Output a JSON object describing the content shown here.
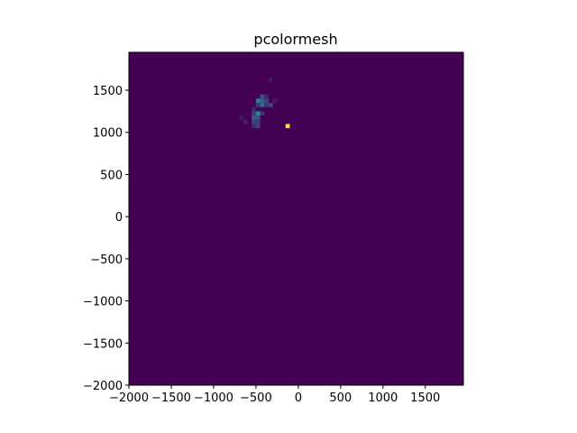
{
  "chart_data": {
    "type": "heatmap",
    "title": "pcolormesh",
    "xlabel": "",
    "ylabel": "",
    "xlim": [
      -2000,
      1950
    ],
    "ylim": [
      -2000,
      1950
    ],
    "xticks": [
      -2000,
      -1500,
      -1000,
      -500,
      0,
      500,
      1000,
      1500
    ],
    "yticks": [
      -2000,
      -1500,
      -1000,
      -500,
      0,
      500,
      1000,
      1500
    ],
    "xtick_labels": [
      "−2000",
      "−1500",
      "−1000",
      "−500",
      "0",
      "500",
      "1000",
      "1500"
    ],
    "ytick_labels": [
      "−2000",
      "−1500",
      "−1000",
      "−500",
      "0",
      "500",
      "1000",
      "1500"
    ],
    "bin_size": 50,
    "colormap": "viridis",
    "background_color": "#440154",
    "grid": false,
    "cells": [
      {
        "x": -350,
        "y": 1600,
        "value": 0.08
      },
      {
        "x": -450,
        "y": 1400,
        "value": 0.25
      },
      {
        "x": -400,
        "y": 1400,
        "value": 0.12
      },
      {
        "x": -500,
        "y": 1350,
        "value": 0.45
      },
      {
        "x": -450,
        "y": 1350,
        "value": 0.3
      },
      {
        "x": -400,
        "y": 1350,
        "value": 0.2
      },
      {
        "x": -300,
        "y": 1350,
        "value": 0.1
      },
      {
        "x": -500,
        "y": 1300,
        "value": 0.18
      },
      {
        "x": -450,
        "y": 1300,
        "value": 0.35
      },
      {
        "x": -400,
        "y": 1300,
        "value": 0.15
      },
      {
        "x": -350,
        "y": 1300,
        "value": 0.22
      },
      {
        "x": -550,
        "y": 1250,
        "value": 0.12
      },
      {
        "x": -500,
        "y": 1200,
        "value": 0.5
      },
      {
        "x": -550,
        "y": 1200,
        "value": 0.2
      },
      {
        "x": -450,
        "y": 1200,
        "value": 0.15
      },
      {
        "x": -700,
        "y": 1150,
        "value": 0.08
      },
      {
        "x": -550,
        "y": 1150,
        "value": 0.3
      },
      {
        "x": -500,
        "y": 1150,
        "value": 0.25
      },
      {
        "x": -650,
        "y": 1100,
        "value": 0.1
      },
      {
        "x": -550,
        "y": 1100,
        "value": 0.22
      },
      {
        "x": -500,
        "y": 1100,
        "value": 0.18
      },
      {
        "x": -550,
        "y": 1050,
        "value": 0.15
      },
      {
        "x": -500,
        "y": 1050,
        "value": 0.2
      },
      {
        "x": -150,
        "y": 1050,
        "value": 1.0
      }
    ]
  }
}
